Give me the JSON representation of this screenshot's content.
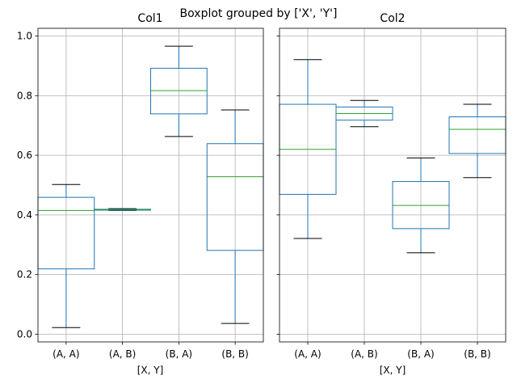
{
  "suptitle": "Boxplot grouped by ['X', 'Y']",
  "chart_data": [
    {
      "type": "box",
      "title": "Col1",
      "xlabel": "[X, Y]",
      "ylabel": "",
      "ylim": [
        -0.026,
        1.026
      ],
      "yticks": [
        "0.0",
        "0.2",
        "0.4",
        "0.6",
        "0.8",
        "1.0"
      ],
      "grid": true,
      "categories": [
        "(A, A)",
        "(A, B)",
        "(B, A)",
        "(B, B)"
      ],
      "boxes": [
        {
          "whisker_low": 0.022,
          "q1": 0.219,
          "median": 0.415,
          "q3": 0.459,
          "whisker_high": 0.502
        },
        {
          "whisker_low": 0.415,
          "q1": 0.416,
          "median": 0.418,
          "q3": 0.419,
          "whisker_high": 0.421
        },
        {
          "whisker_low": 0.663,
          "q1": 0.739,
          "median": 0.817,
          "q3": 0.892,
          "whisker_high": 0.966
        },
        {
          "whisker_low": 0.036,
          "q1": 0.281,
          "median": 0.528,
          "q3": 0.639,
          "whisker_high": 0.752
        }
      ]
    },
    {
      "type": "box",
      "title": "Col2",
      "xlabel": "[X, Y]",
      "ylabel": "",
      "ylim": [
        -0.026,
        1.026
      ],
      "yticks": [
        "0.0",
        "0.2",
        "0.4",
        "0.6",
        "0.8",
        "1.0"
      ],
      "grid": true,
      "categories": [
        "(A, A)",
        "(A, B)",
        "(B, A)",
        "(B, B)"
      ],
      "boxes": [
        {
          "whisker_low": 0.321,
          "q1": 0.469,
          "median": 0.62,
          "q3": 0.771,
          "whisker_high": 0.921
        },
        {
          "whisker_low": 0.696,
          "q1": 0.718,
          "median": 0.74,
          "q3": 0.762,
          "whisker_high": 0.784
        },
        {
          "whisker_low": 0.273,
          "q1": 0.354,
          "median": 0.432,
          "q3": 0.512,
          "whisker_high": 0.591
        },
        {
          "whisker_low": 0.525,
          "q1": 0.606,
          "median": 0.687,
          "q3": 0.729,
          "whisker_high": 0.771
        }
      ]
    }
  ]
}
